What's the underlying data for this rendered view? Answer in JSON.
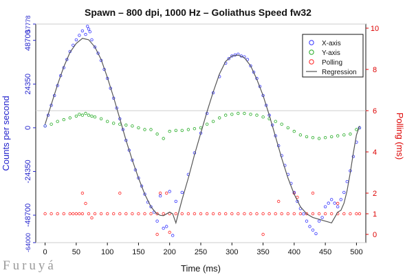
{
  "watermark": "Furuyá",
  "chart_data": {
    "type": "scatter",
    "title": "Spawn – 800 dpi, 1000 Hz – Goliathus Speed fw32",
    "xlabel": "Time (ms)",
    "ylabel": "Counts per second",
    "y2label": "Polling (ms)",
    "xlim": [
      -15,
      515
    ],
    "ylim": [
      -64000,
      57778
    ],
    "y2lim": [
      -0.4,
      10.2
    ],
    "x_ticks": [
      0,
      50,
      100,
      150,
      200,
      250,
      300,
      350,
      400,
      450,
      500
    ],
    "y_ticks": [
      -64000,
      -48700,
      -24350,
      0,
      24350,
      48700,
      57778
    ],
    "y2_ticks": [
      0,
      1,
      2,
      4,
      6,
      8,
      10
    ],
    "y_hlines": [
      -64000,
      57778
    ],
    "y2_hline": 6,
    "colors": {
      "x_axis": "#3333ff",
      "y_axis": "#22aa22",
      "polling": "#ff2222",
      "regression": "#555555",
      "left_axis": "#2222cc",
      "right_axis": "#dd0000"
    },
    "legend": {
      "position": "top-right",
      "entries": [
        {
          "label": "X-axis",
          "color": "#3333ff",
          "kind": "point"
        },
        {
          "label": "Y-axis",
          "color": "#22aa22",
          "kind": "point"
        },
        {
          "label": "Polling",
          "color": "#ff2222",
          "kind": "point"
        },
        {
          "label": "Regression",
          "color": "#555555",
          "kind": "line"
        }
      ]
    },
    "series": [
      {
        "name": "Regression",
        "kind": "line",
        "axis": "left",
        "x": [
          0,
          10,
          20,
          30,
          40,
          50,
          60,
          70,
          80,
          90,
          100,
          110,
          120,
          130,
          140,
          150,
          160,
          170,
          178,
          185,
          190,
          195,
          200,
          205,
          210,
          220,
          230,
          240,
          250,
          260,
          270,
          280,
          290,
          300,
          310,
          320,
          330,
          340,
          350,
          360,
          370,
          380,
          390,
          400,
          410,
          420,
          430,
          440,
          450,
          460,
          465,
          470,
          475,
          480,
          485,
          490,
          495,
          500,
          505
        ],
        "y": [
          2000,
          13000,
          24000,
          34000,
          42000,
          47000,
          49800,
          49000,
          45000,
          38000,
          28000,
          17000,
          5000,
          -7000,
          -18000,
          -28000,
          -37000,
          -44000,
          -47500,
          -48800,
          -49000,
          -48000,
          -47000,
          -48000,
          -53000,
          -40000,
          -28000,
          -15000,
          -3000,
          9000,
          20000,
          30000,
          37000,
          40000,
          40500,
          39000,
          34500,
          27000,
          18000,
          7000,
          -5000,
          -17000,
          -28000,
          -37000,
          -44000,
          -48000,
          -50000,
          -51000,
          -52000,
          -53000,
          -50000,
          -47000,
          -46000,
          -42000,
          -35000,
          -25000,
          -14000,
          -4000,
          1000
        ]
      },
      {
        "name": "X-axis",
        "kind": "points",
        "axis": "left",
        "x": [
          0,
          5,
          10,
          15,
          20,
          25,
          30,
          35,
          40,
          45,
          50,
          55,
          60,
          65,
          68,
          70,
          72,
          75,
          80,
          85,
          90,
          95,
          100,
          105,
          110,
          115,
          120,
          125,
          130,
          135,
          140,
          145,
          150,
          155,
          160,
          165,
          170,
          175,
          180,
          185,
          190,
          195,
          200,
          205,
          210,
          220,
          230,
          240,
          250,
          260,
          270,
          280,
          290,
          295,
          300,
          305,
          310,
          315,
          320,
          325,
          330,
          335,
          340,
          345,
          350,
          355,
          360,
          365,
          370,
          375,
          380,
          385,
          390,
          395,
          400,
          405,
          410,
          415,
          420,
          425,
          430,
          435,
          440,
          445,
          450,
          455,
          460,
          465,
          470,
          475,
          480,
          485,
          490,
          495,
          500,
          505
        ],
        "y": [
          1000,
          7000,
          12500,
          18000,
          23500,
          29000,
          33500,
          38000,
          42500,
          46000,
          49000,
          51500,
          54000,
          52000,
          56500,
          55000,
          53500,
          49000,
          45000,
          41500,
          37500,
          32500,
          27500,
          22000,
          16500,
          11000,
          5000,
          -1000,
          -7000,
          -12500,
          -18000,
          -23500,
          -28000,
          -32500,
          -37000,
          -41500,
          -44000,
          -47000,
          -52000,
          -38000,
          -56000,
          -55000,
          -35500,
          -60000,
          -41000,
          -36000,
          -26000,
          -14000,
          -3000,
          8000,
          19500,
          28500,
          36000,
          38500,
          40000,
          40500,
          41000,
          40000,
          39500,
          38000,
          34500,
          31000,
          27500,
          23000,
          18000,
          12500,
          7000,
          1500,
          -4500,
          -10000,
          -15500,
          -21000,
          -26000,
          -31000,
          -36000,
          -41000,
          -45000,
          -48000,
          -52000,
          -55000,
          -57000,
          -59000,
          -52000,
          -50000,
          -44000,
          -42000,
          -40000,
          -42000,
          -44000,
          -40000,
          -36000,
          -30000,
          -24000,
          -16000,
          -8000,
          0
        ]
      },
      {
        "name": "Y-axis",
        "kind": "points",
        "axis": "left",
        "x": [
          0,
          10,
          20,
          30,
          40,
          50,
          55,
          60,
          65,
          70,
          75,
          80,
          90,
          100,
          110,
          120,
          130,
          140,
          150,
          160,
          170,
          180,
          190,
          200,
          210,
          220,
          230,
          240,
          250,
          260,
          270,
          280,
          290,
          300,
          310,
          320,
          330,
          340,
          350,
          360,
          370,
          380,
          390,
          400,
          410,
          420,
          430,
          440,
          450,
          460,
          470,
          480,
          490,
          500,
          505
        ],
        "y": [
          1000,
          2000,
          3500,
          4500,
          5500,
          6500,
          7500,
          7000,
          8000,
          7000,
          6500,
          6000,
          5000,
          3500,
          2500,
          2000,
          1500,
          1000,
          0,
          -1000,
          -1000,
          -3500,
          -6000,
          -2000,
          -1500,
          -1500,
          -1000,
          -500,
          0,
          2000,
          3500,
          5500,
          7000,
          7500,
          8000,
          8000,
          7500,
          7000,
          6000,
          5000,
          3500,
          2000,
          0,
          -2000,
          -4000,
          -5000,
          -5500,
          -6000,
          -5500,
          -5000,
          -4500,
          -4000,
          -3500,
          -1000,
          0
        ]
      },
      {
        "name": "Polling",
        "kind": "points",
        "axis": "right",
        "x": [
          0,
          10,
          20,
          30,
          40,
          45,
          50,
          55,
          60,
          70,
          80,
          90,
          100,
          110,
          120,
          130,
          140,
          150,
          160,
          170,
          180,
          190,
          200,
          210,
          220,
          230,
          240,
          250,
          260,
          270,
          280,
          290,
          300,
          310,
          320,
          330,
          340,
          350,
          360,
          370,
          380,
          390,
          400,
          410,
          420,
          430,
          440,
          450,
          460,
          470,
          480,
          490,
          500,
          505,
          60,
          65,
          75,
          195,
          405,
          430,
          470,
          375,
          400,
          180,
          185,
          200,
          120,
          350
        ],
        "y": [
          1,
          1,
          1,
          1,
          1,
          1,
          1,
          1,
          1,
          1,
          1,
          1,
          1,
          1,
          1,
          1,
          1,
          1,
          1,
          1,
          1,
          1,
          1,
          1,
          1,
          1,
          1,
          1,
          1,
          1,
          1,
          1,
          1,
          1,
          1,
          1,
          1,
          1,
          1,
          1,
          1,
          1,
          1,
          1,
          1,
          1,
          1,
          1,
          1,
          1,
          1,
          1,
          1,
          1,
          2,
          1.5,
          0.8,
          2,
          1.8,
          2,
          1.5,
          1.6,
          2,
          0,
          2,
          0.1,
          2,
          0
        ]
      }
    ]
  }
}
